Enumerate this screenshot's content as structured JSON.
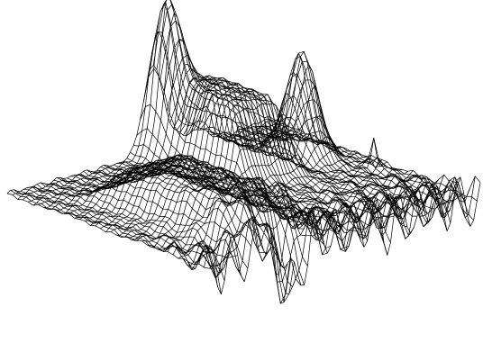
{
  "chart_data": {
    "type": "surface",
    "style": "wireframe",
    "grid": false,
    "axes": false,
    "title": "",
    "xlabel": "",
    "ylabel": "",
    "zlabel": "",
    "colors": {
      "background": "#ffffff",
      "line": "#000000"
    },
    "x_range": [
      0,
      1
    ],
    "y_range": [
      0,
      1
    ],
    "z_range": [
      -1.6,
      2.4
    ],
    "features": [
      {
        "name": "ridge",
        "x": 0.27,
        "y": 0.62,
        "z": 0.9
      },
      {
        "name": "tall-plateau",
        "x": 0.62,
        "y": 0.25,
        "z": 1.6
      },
      {
        "name": "right-peak",
        "x": 0.86,
        "y": 0.32,
        "z": 2.1
      },
      {
        "name": "left-peak",
        "x": 0.55,
        "y": 0.05,
        "z": 2.3
      },
      {
        "name": "edge-spike",
        "x": 0.95,
        "y": 0.55,
        "z": 0.6
      },
      {
        "name": "valley",
        "x": 0.3,
        "y": 0.96,
        "z": -1.3
      }
    ]
  }
}
